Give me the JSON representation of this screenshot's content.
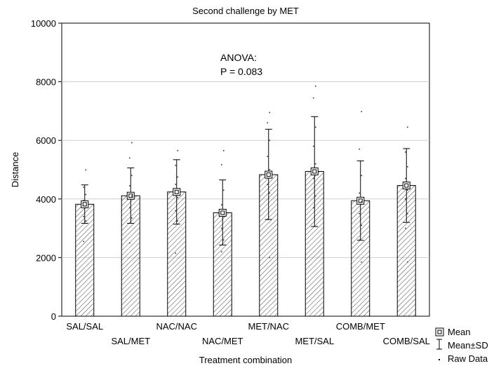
{
  "chart_data": {
    "type": "bar",
    "title": "Second challenge by MET",
    "xlabel": "Treatment combination",
    "ylabel": "Distance",
    "ylim": [
      0,
      10000
    ],
    "yticks": [
      0,
      2000,
      4000,
      6000,
      8000,
      10000
    ],
    "grid": true,
    "categories": [
      "SAL/SAL",
      "SAL/MET",
      "NAC/NAC",
      "NAC/MET",
      "MET/NAC",
      "MET/SAL",
      "COMB/MET",
      "COMB/SAL"
    ],
    "series": [
      {
        "values": [
          3820,
          4110,
          4240,
          3530,
          4830,
          4940,
          3940,
          4460
        ],
        "sd_low": [
          3170,
          3170,
          3140,
          2430,
          3300,
          3060,
          2590,
          3200
        ],
        "sd_high": [
          4480,
          5060,
          5340,
          4650,
          6380,
          6810,
          5300,
          5720
        ],
        "raw_data": [
          [
            4990,
            4400,
            4150,
            3950,
            3700,
            3400,
            3250,
            2550
          ],
          [
            5920,
            5400,
            4800,
            4450,
            4100,
            3700,
            3350,
            2500
          ],
          [
            5650,
            5150,
            4750,
            4500,
            4050,
            3600,
            3250,
            2150
          ],
          [
            5650,
            5170,
            4300,
            3800,
            3400,
            3000,
            2600,
            2200
          ],
          [
            6950,
            6600,
            6000,
            5450,
            5000,
            4500,
            4200,
            3300,
            2000
          ],
          [
            7850,
            7450,
            6450,
            5800,
            5200,
            4700,
            4100,
            3700
          ],
          [
            6980,
            5700,
            4800,
            4200,
            3900,
            3500,
            3100,
            2600,
            1850
          ],
          [
            6450,
            5600,
            5100,
            4700,
            4300,
            4000,
            3500,
            3000,
            1850
          ]
        ]
      }
    ],
    "annotation": {
      "line1": "ANOVA:",
      "line2": "P = 0.083"
    },
    "legend": {
      "placement": "bottom-right",
      "items": [
        "Mean",
        "Mean±SD",
        "Raw Data"
      ]
    }
  }
}
